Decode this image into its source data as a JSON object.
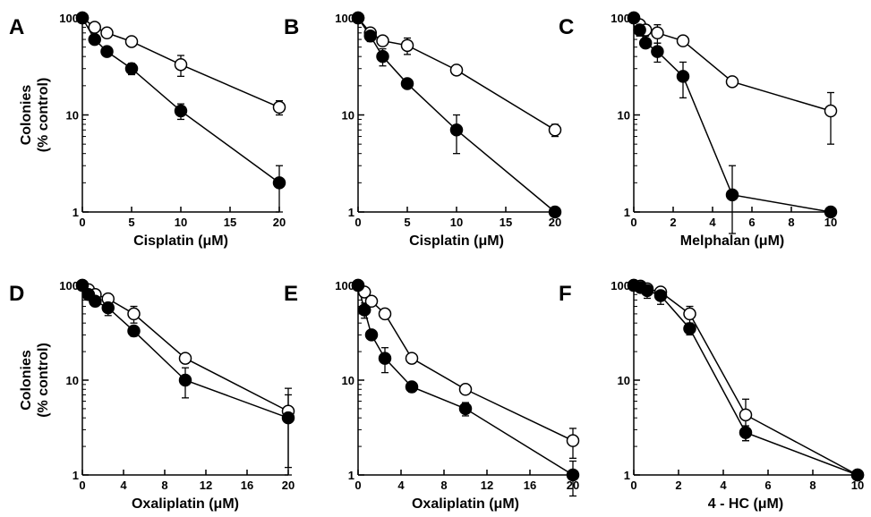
{
  "chart_data": [
    {
      "panel": "A",
      "type": "scatter",
      "xlabel": "Cisplatin (μM)",
      "ylabel_lines": [
        "Colonies",
        "(% control)"
      ],
      "xlim": [
        0,
        20
      ],
      "ylim": [
        1,
        100
      ],
      "yscale": "log",
      "x_ticks": [
        0,
        5,
        10,
        15,
        20
      ],
      "x_tick_labels": [
        "0",
        "5",
        "10",
        "15",
        "20"
      ],
      "y_ticks": [
        1,
        10,
        100
      ],
      "y_tick_labels": [
        "1",
        "10",
        "100"
      ],
      "series": [
        {
          "marker": "filled",
          "points": [
            {
              "x": 0,
              "y": 100
            },
            {
              "x": 1.25,
              "y": 60,
              "err": 5
            },
            {
              "x": 2.5,
              "y": 45,
              "err": 4
            },
            {
              "x": 5,
              "y": 30,
              "err": 4
            },
            {
              "x": 10,
              "y": 11,
              "err": 2
            },
            {
              "x": 20,
              "y": 2,
              "err": 1
            }
          ]
        },
        {
          "marker": "open",
          "points": [
            {
              "x": 0,
              "y": 100
            },
            {
              "x": 1.25,
              "y": 80,
              "err": 5
            },
            {
              "x": 2.5,
              "y": 70,
              "err": 5
            },
            {
              "x": 5,
              "y": 57,
              "err": 5
            },
            {
              "x": 10,
              "y": 33,
              "err": 8
            },
            {
              "x": 20,
              "y": 12,
              "err": 2
            }
          ]
        }
      ]
    },
    {
      "panel": "B",
      "type": "scatter",
      "xlabel": "Cisplatin (μM)",
      "ylabel_lines": [],
      "xlim": [
        0,
        20
      ],
      "ylim": [
        1,
        100
      ],
      "yscale": "log",
      "x_ticks": [
        0,
        5,
        10,
        15,
        20
      ],
      "x_tick_labels": [
        "0",
        "5",
        "10",
        "15",
        "20"
      ],
      "y_ticks": [
        1,
        10,
        100
      ],
      "y_tick_labels": [
        "1",
        "10",
        "100"
      ],
      "series": [
        {
          "marker": "filled",
          "points": [
            {
              "x": 0,
              "y": 100
            },
            {
              "x": 1.25,
              "y": 65,
              "err": 8
            },
            {
              "x": 2.5,
              "y": 40,
              "err": 8
            },
            {
              "x": 5,
              "y": 21,
              "err": 2
            },
            {
              "x": 10,
              "y": 7,
              "err": 3
            },
            {
              "x": 20,
              "y": 1
            }
          ]
        },
        {
          "marker": "open",
          "points": [
            {
              "x": 0,
              "y": 100
            },
            {
              "x": 1.25,
              "y": 70,
              "err": 5
            },
            {
              "x": 2.5,
              "y": 58,
              "err": 5
            },
            {
              "x": 5,
              "y": 52,
              "err": 10
            },
            {
              "x": 10,
              "y": 29,
              "err": 3
            },
            {
              "x": 20,
              "y": 7,
              "err": 1
            }
          ]
        }
      ]
    },
    {
      "panel": "C",
      "type": "scatter",
      "xlabel": "Melphalan (μM)",
      "ylabel_lines": [],
      "xlim": [
        0,
        10
      ],
      "ylim": [
        1,
        100
      ],
      "yscale": "log",
      "x_ticks": [
        0,
        2,
        4,
        6,
        8,
        10
      ],
      "x_tick_labels": [
        "0",
        "2",
        "4",
        "6",
        "8",
        "10"
      ],
      "y_ticks": [
        1,
        10,
        100
      ],
      "y_tick_labels": [
        "1",
        "10",
        "100"
      ],
      "series": [
        {
          "marker": "filled",
          "points": [
            {
              "x": 0,
              "y": 100
            },
            {
              "x": 0.3,
              "y": 75,
              "err": 10
            },
            {
              "x": 0.6,
              "y": 55,
              "err": 6
            },
            {
              "x": 1.2,
              "y": 45,
              "err": 10
            },
            {
              "x": 2.5,
              "y": 25,
              "err": 10
            },
            {
              "x": 5,
              "y": 1.5,
              "err": 1.5
            },
            {
              "x": 10,
              "y": 1
            }
          ]
        },
        {
          "marker": "open",
          "points": [
            {
              "x": 0,
              "y": 100
            },
            {
              "x": 0.3,
              "y": 85,
              "err": 10
            },
            {
              "x": 0.6,
              "y": 75,
              "err": 10
            },
            {
              "x": 1.2,
              "y": 70,
              "err": 15
            },
            {
              "x": 2.5,
              "y": 58,
              "err": 6
            },
            {
              "x": 5,
              "y": 22,
              "err": 2
            },
            {
              "x": 10,
              "y": 11,
              "err": 6
            }
          ]
        }
      ]
    },
    {
      "panel": "D",
      "type": "scatter",
      "xlabel": "Oxaliplatin (μM)",
      "ylabel_lines": [
        "Colonies",
        "(% control)"
      ],
      "xlim": [
        0,
        20
      ],
      "ylim": [
        1,
        100
      ],
      "yscale": "log",
      "x_ticks": [
        0,
        4,
        8,
        12,
        16,
        20
      ],
      "x_tick_labels": [
        "0",
        "4",
        "8",
        "12",
        "16",
        "20"
      ],
      "y_ticks": [
        1,
        10,
        100
      ],
      "y_tick_labels": [
        "1",
        "10",
        "100"
      ],
      "series": [
        {
          "marker": "filled",
          "points": [
            {
              "x": 0,
              "y": 100
            },
            {
              "x": 0.6,
              "y": 80,
              "err": 10
            },
            {
              "x": 1.25,
              "y": 68,
              "err": 8
            },
            {
              "x": 2.5,
              "y": 58,
              "err": 10
            },
            {
              "x": 5,
              "y": 33,
              "err": 4
            },
            {
              "x": 10,
              "y": 10,
              "err": 3.5
            },
            {
              "x": 20,
              "y": 4,
              "err": 3
            }
          ]
        },
        {
          "marker": "open",
          "points": [
            {
              "x": 0,
              "y": 100
            },
            {
              "x": 0.6,
              "y": 90,
              "err": 8
            },
            {
              "x": 1.25,
              "y": 80,
              "err": 8
            },
            {
              "x": 2.5,
              "y": 72,
              "err": 8
            },
            {
              "x": 5,
              "y": 50,
              "err": 10
            },
            {
              "x": 10,
              "y": 17,
              "err": 2
            },
            {
              "x": 20,
              "y": 4.7,
              "err": 3.5
            }
          ]
        }
      ]
    },
    {
      "panel": "E",
      "type": "scatter",
      "xlabel": "Oxaliplatin (μM)",
      "ylabel_lines": [],
      "xlim": [
        0,
        20
      ],
      "ylim": [
        1,
        100
      ],
      "yscale": "log",
      "x_ticks": [
        0,
        4,
        8,
        12,
        16,
        20
      ],
      "x_tick_labels": [
        "0",
        "4",
        "8",
        "12",
        "16",
        "20"
      ],
      "y_ticks": [
        1,
        10,
        100
      ],
      "y_tick_labels": [
        "1",
        "10",
        "100"
      ],
      "series": [
        {
          "marker": "filled",
          "points": [
            {
              "x": 0,
              "y": 100
            },
            {
              "x": 0.6,
              "y": 55,
              "err": 10
            },
            {
              "x": 1.25,
              "y": 30,
              "err": 3
            },
            {
              "x": 2.5,
              "y": 17,
              "err": 5
            },
            {
              "x": 5,
              "y": 8.5,
              "err": 1
            },
            {
              "x": 10,
              "y": 5,
              "err": 0.8
            },
            {
              "x": 20,
              "y": 1,
              "err": 0.4
            }
          ]
        },
        {
          "marker": "open",
          "points": [
            {
              "x": 0,
              "y": 100
            },
            {
              "x": 0.6,
              "y": 85,
              "err": 6
            },
            {
              "x": 1.25,
              "y": 68,
              "err": 6
            },
            {
              "x": 2.5,
              "y": 50,
              "err": 4
            },
            {
              "x": 5,
              "y": 17,
              "err": 2
            },
            {
              "x": 10,
              "y": 8,
              "err": 0.8
            },
            {
              "x": 20,
              "y": 2.3,
              "err": 0.8
            }
          ]
        }
      ]
    },
    {
      "panel": "F",
      "type": "scatter",
      "xlabel": "4 - HC (μM)",
      "ylabel_lines": [],
      "xlim": [
        0,
        10
      ],
      "ylim": [
        1,
        100
      ],
      "yscale": "log",
      "x_ticks": [
        0,
        2,
        4,
        6,
        8,
        10
      ],
      "x_tick_labels": [
        "0",
        "2",
        "4",
        "6",
        "8",
        "10"
      ],
      "y_ticks": [
        1,
        10,
        100
      ],
      "y_tick_labels": [
        "1",
        "10",
        "100"
      ],
      "series": [
        {
          "marker": "filled",
          "points": [
            {
              "x": 0,
              "y": 100
            },
            {
              "x": 0.3,
              "y": 95,
              "err": 8
            },
            {
              "x": 0.6,
              "y": 88,
              "err": 15
            },
            {
              "x": 1.2,
              "y": 78,
              "err": 15
            },
            {
              "x": 2.5,
              "y": 35,
              "err": 5
            },
            {
              "x": 5,
              "y": 2.8,
              "err": 0.5
            },
            {
              "x": 10,
              "y": 1
            }
          ]
        },
        {
          "marker": "open",
          "points": [
            {
              "x": 0,
              "y": 100
            },
            {
              "x": 0.3,
              "y": 98,
              "err": 5
            },
            {
              "x": 0.6,
              "y": 92,
              "err": 5
            },
            {
              "x": 1.2,
              "y": 85,
              "err": 8
            },
            {
              "x": 2.5,
              "y": 50,
              "err": 10
            },
            {
              "x": 5,
              "y": 4.3,
              "err": 2
            },
            {
              "x": 10,
              "y": 1
            }
          ]
        }
      ]
    }
  ]
}
